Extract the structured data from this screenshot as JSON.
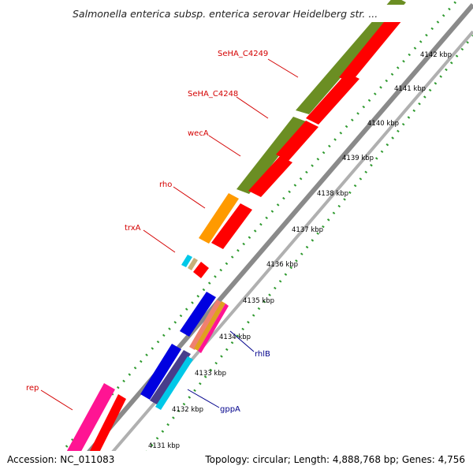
{
  "title": "Salmonella enterica subsp. enterica serovar Heidelberg str. ...",
  "footer": {
    "accession": "Accession: NC_011083",
    "summary": "Topology: circular; Length: 4,888,768 bp; Genes: 4,756"
  },
  "colors": {
    "backbone": "#8a8a8a",
    "tick": "#1f8a2a",
    "tick_minor": "#2f9a2f",
    "label_red": "#d40000",
    "label_blue": "#00008b",
    "green_gene": "#6b8e23",
    "red_gene": "#ff0000",
    "orange_gene": "#ff9a00",
    "blue_gene": "#0000e0",
    "navy_gene": "#483d8b",
    "cyan_gene": "#00c8e8",
    "tan_gene": "#c8b07a",
    "pink_gene": "#ff1493",
    "salmon_gene": "#f08070",
    "gold_gene": "#e0a020"
  },
  "scale": {
    "ticks": [
      {
        "label": "4131 kbp"
      },
      {
        "label": "4132 kbp"
      },
      {
        "label": "4133 kbp"
      },
      {
        "label": "4134 kbp"
      },
      {
        "label": "4135 kbp"
      },
      {
        "label": "4136 kbp"
      },
      {
        "label": "4137 kbp"
      },
      {
        "label": "4138 kbp"
      },
      {
        "label": "4139 kbp"
      },
      {
        "label": "4140 kbp"
      },
      {
        "label": "4141 kbp"
      },
      {
        "label": "4142 kbp"
      }
    ]
  },
  "gene_labels": [
    {
      "name": "SeHA_C4249",
      "color": "red"
    },
    {
      "name": "SeHA_C4248",
      "color": "red"
    },
    {
      "name": "wecA",
      "color": "red"
    },
    {
      "name": "rho",
      "color": "red"
    },
    {
      "name": "trxA",
      "color": "red"
    },
    {
      "name": "rep",
      "color": "red"
    },
    {
      "name": "rhlB",
      "color": "blue"
    },
    {
      "name": "gppA",
      "color": "blue"
    }
  ]
}
